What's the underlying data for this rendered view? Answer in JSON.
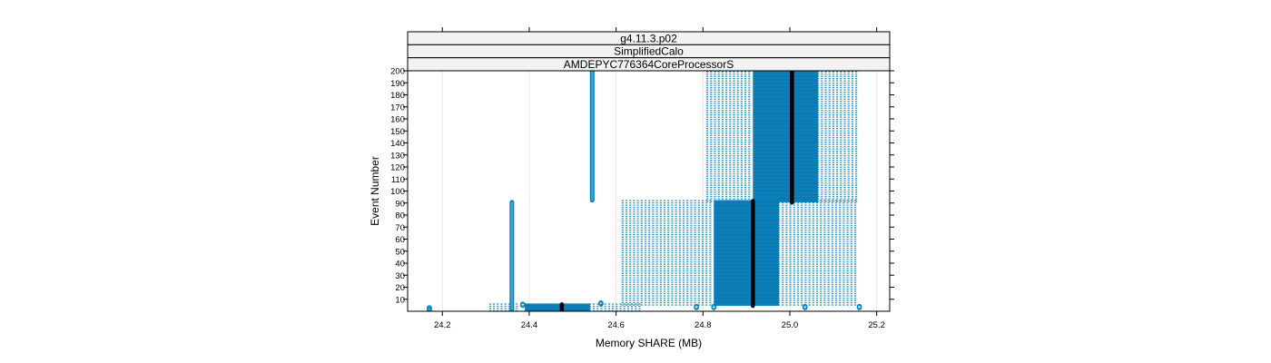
{
  "chart_data": {
    "type": "scatter",
    "strips": [
      "g4.11.3.p02",
      "SimplifiedCalo",
      "AMDEPYC776364CoreProcessorS"
    ],
    "xlabel": "Memory SHARE (MB)",
    "ylabel": "Event Number",
    "xlim": [
      24.12,
      25.23
    ],
    "ylim": [
      0,
      200
    ],
    "x_ticks": [
      24.2,
      24.4,
      24.6,
      24.8,
      25.0,
      25.2
    ],
    "x_tick_labels": [
      "24.2",
      "24.4",
      "24.6",
      "24.8",
      "25.0",
      "25.2"
    ],
    "y_ticks": [
      10,
      20,
      30,
      40,
      50,
      60,
      70,
      80,
      90,
      100,
      110,
      120,
      130,
      140,
      150,
      160,
      170,
      180,
      190,
      200
    ],
    "y_tick_labels": [
      "10",
      "20",
      "30",
      "40",
      "50",
      "60",
      "70",
      "80",
      "90",
      "100",
      "110",
      "120",
      "130",
      "140",
      "150",
      "160",
      "170",
      "180",
      "190",
      "200"
    ],
    "grid": true,
    "colors": {
      "points": "#0080c0",
      "median": "#000000",
      "grid": "#e6e6e6",
      "strip_bg": "#f2f2f2"
    },
    "blocks": [
      {
        "x_min": 24.31,
        "x_max": 24.38,
        "y_min": 1,
        "y_max": 5,
        "density": "sparse"
      },
      {
        "x_min": 24.39,
        "x_max": 24.54,
        "y_min": 1,
        "y_max": 5,
        "density": "dense"
      },
      {
        "x_min": 24.54,
        "x_max": 24.66,
        "y_min": 1,
        "y_max": 5,
        "density": "sparse"
      },
      {
        "x_min": 24.615,
        "x_max": 24.825,
        "y_min": 6,
        "y_max": 91,
        "density": "sparse"
      },
      {
        "x_min": 24.825,
        "x_max": 24.975,
        "y_min": 6,
        "y_max": 91,
        "density": "dense"
      },
      {
        "x_min": 24.975,
        "x_max": 25.155,
        "y_min": 6,
        "y_max": 91,
        "density": "sparse"
      },
      {
        "x_min": 24.81,
        "x_max": 24.915,
        "y_min": 92,
        "y_max": 200,
        "density": "sparse"
      },
      {
        "x_min": 24.915,
        "x_max": 25.065,
        "y_min": 92,
        "y_max": 200,
        "density": "dense"
      },
      {
        "x_min": 25.065,
        "x_max": 25.16,
        "y_min": 92,
        "y_max": 200,
        "density": "sparse"
      }
    ],
    "columns": [
      {
        "x": 24.36,
        "y_min": 1,
        "y_max": 91
      },
      {
        "x": 24.545,
        "y_min": 92,
        "y_max": 200
      }
    ],
    "points": [
      {
        "x": 24.17,
        "y": 1
      },
      {
        "x": 24.17,
        "y": 2
      },
      {
        "x": 24.17,
        "y": 3
      },
      {
        "x": 24.385,
        "y": 5
      },
      {
        "x": 24.385,
        "y": 6
      },
      {
        "x": 24.565,
        "y": 6
      },
      {
        "x": 24.565,
        "y": 7
      },
      {
        "x": 24.785,
        "y": 3
      },
      {
        "x": 24.785,
        "y": 4
      },
      {
        "x": 24.825,
        "y": 3
      },
      {
        "x": 24.825,
        "y": 4
      },
      {
        "x": 25.035,
        "y": 3
      },
      {
        "x": 25.035,
        "y": 4
      },
      {
        "x": 25.16,
        "y": 3
      },
      {
        "x": 25.16,
        "y": 4
      }
    ],
    "medians": [
      {
        "x": 24.475,
        "y_min": 1,
        "y_max": 5
      },
      {
        "x": 24.915,
        "y_min": 6,
        "y_max": 91
      },
      {
        "x": 25.005,
        "y_min": 92,
        "y_max": 200
      }
    ]
  }
}
